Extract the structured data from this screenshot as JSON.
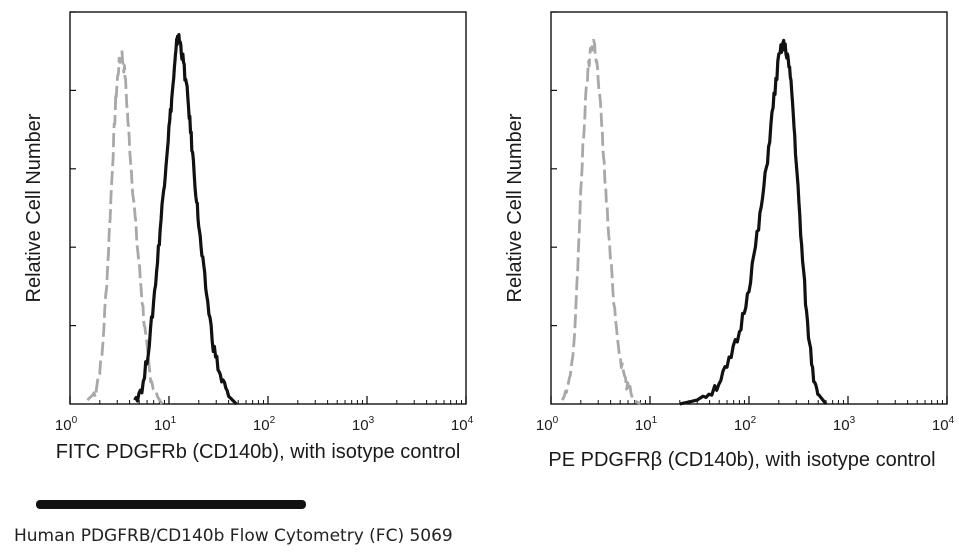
{
  "chart_data": [
    {
      "type": "line",
      "xscale": "log",
      "xlim": [
        1,
        10000
      ],
      "xticks": [
        "10",
        "10",
        "10",
        "10",
        "10"
      ],
      "xtick_exponents": [
        "0",
        "1",
        "2",
        "3",
        "4"
      ],
      "xlabel": "FITC PDGFRb (CD140b), with isotype control",
      "ylabel": "Relative Cell Number",
      "ylim": [
        0,
        100
      ],
      "grid": false,
      "colors": {
        "isotype": "#a8a8a8",
        "sample": "#111111"
      },
      "series": [
        {
          "style": "dashed",
          "color": "#a8a8a8",
          "x": [
            1.5,
            1.8,
            2.1,
            2.4,
            2.7,
            2.9,
            3.1,
            3.3,
            3.6,
            3.9,
            4.3,
            4.8,
            5.3,
            5.8,
            6.4,
            7.2,
            8.5
          ],
          "y": [
            1,
            3,
            12,
            35,
            62,
            78,
            86,
            90,
            84,
            70,
            55,
            40,
            28,
            17,
            8,
            3,
            0
          ]
        },
        {
          "style": "solid",
          "color": "#111111",
          "x": [
            4.5,
            5.5,
            6.5,
            7.5,
            8.5,
            9.5,
            10.5,
            11.5,
            12.2,
            13.0,
            14.0,
            15.5,
            17.0,
            19.0,
            21.0,
            24.0,
            28.0,
            33.0,
            40.0,
            48.0
          ],
          "y": [
            1,
            5,
            18,
            34,
            50,
            64,
            76,
            87,
            94,
            92,
            87,
            78,
            66,
            52,
            40,
            28,
            15,
            7,
            2,
            0
          ]
        }
      ]
    },
    {
      "type": "line",
      "xscale": "log",
      "xlim": [
        1,
        10000
      ],
      "xticks": [
        "10",
        "10",
        "10",
        "10",
        "10"
      ],
      "xtick_exponents": [
        "0",
        "1",
        "2",
        "3",
        "4"
      ],
      "xlabel": "PE PDGFRβ (CD140b), with isotype control",
      "ylabel": "Relative Cell Number",
      "ylim": [
        0,
        100
      ],
      "grid": false,
      "colors": {
        "isotype": "#a8a8a8",
        "sample": "#111111"
      },
      "series": [
        {
          "style": "dashed",
          "color": "#a8a8a8",
          "x": [
            1.3,
            1.5,
            1.7,
            1.9,
            2.1,
            2.3,
            2.5,
            2.7,
            2.9,
            3.2,
            3.5,
            3.9,
            4.4,
            5.0,
            5.8,
            6.8,
            8.0
          ],
          "y": [
            1,
            4,
            14,
            40,
            66,
            82,
            90,
            93,
            87,
            74,
            58,
            40,
            24,
            12,
            5,
            1,
            0
          ]
        },
        {
          "style": "solid",
          "color": "#111111",
          "x": [
            20,
            30,
            45,
            60,
            80,
            100,
            125,
            150,
            175,
            200,
            220,
            245,
            270,
            300,
            340,
            390,
            450,
            520,
            600
          ],
          "y": [
            0,
            1,
            4,
            9,
            18,
            30,
            45,
            60,
            76,
            88,
            92,
            89,
            80,
            62,
            40,
            20,
            7,
            2,
            0
          ]
        }
      ]
    }
  ],
  "caption": "Human PDGFRB/CD140b Flow Cytometry (FC) 5069"
}
